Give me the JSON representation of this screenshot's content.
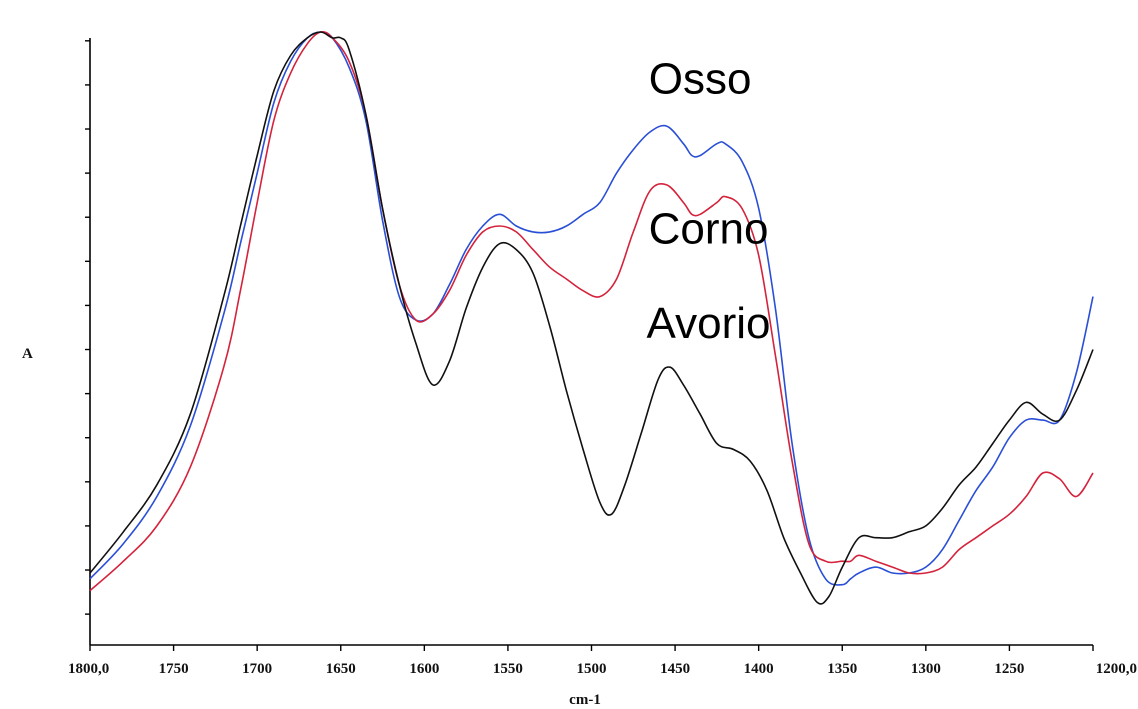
{
  "chart_data": {
    "type": "line",
    "xlabel": "cm-1",
    "ylabel": "A",
    "xlim": [
      1800,
      1200
    ],
    "x_reversed": true,
    "ylim": [
      0,
      1
    ],
    "x_tick_labels": [
      {
        "x": 1800,
        "label": "1800,0"
      },
      {
        "x": 1750,
        "label": "1750"
      },
      {
        "x": 1700,
        "label": "1700"
      },
      {
        "x": 1650,
        "label": "1650"
      },
      {
        "x": 1600,
        "label": "1600"
      },
      {
        "x": 1550,
        "label": "1550"
      },
      {
        "x": 1500,
        "label": "1500"
      },
      {
        "x": 1450,
        "label": "1450"
      },
      {
        "x": 1400,
        "label": "1400"
      },
      {
        "x": 1350,
        "label": "1350"
      },
      {
        "x": 1300,
        "label": "1300"
      },
      {
        "x": 1250,
        "label": "1250"
      },
      {
        "x": 1200,
        "label": "1200,0"
      }
    ],
    "y_tick_values": [
      0.01,
      0.085,
      0.16,
      0.235,
      0.31,
      0.385,
      0.46,
      0.535,
      0.61,
      0.685,
      0.76,
      0.835,
      0.91,
      0.985
    ],
    "annotations": [
      {
        "text": "Osso",
        "series": "Osso",
        "x": 1435,
        "y": 0.895
      },
      {
        "text": "Corno",
        "series": "Corno",
        "x": 1430,
        "y": 0.64
      },
      {
        "text": "Avorio",
        "series": "Avorio",
        "x": 1430,
        "y": 0.48
      }
    ],
    "series": [
      {
        "name": "Osso",
        "color": "#2a4fd6",
        "x": [
          1800,
          1780,
          1760,
          1740,
          1720,
          1710,
          1700,
          1690,
          1680,
          1670,
          1662,
          1655,
          1645,
          1635,
          1625,
          1615,
          1605,
          1595,
          1585,
          1575,
          1565,
          1555,
          1545,
          1535,
          1525,
          1515,
          1505,
          1495,
          1485,
          1475,
          1465,
          1455,
          1445,
          1440,
          1435,
          1425,
          1420,
          1410,
          1400,
          1390,
          1380,
          1370,
          1360,
          1350,
          1345,
          1340,
          1330,
          1320,
          1310,
          1300,
          1290,
          1280,
          1270,
          1260,
          1250,
          1240,
          1230,
          1220,
          1210,
          1200
        ],
        "y": [
          0.07,
          0.13,
          0.21,
          0.33,
          0.52,
          0.64,
          0.76,
          0.88,
          0.95,
          0.99,
          1.0,
          0.99,
          0.94,
          0.85,
          0.68,
          0.55,
          0.51,
          0.52,
          0.57,
          0.63,
          0.67,
          0.69,
          0.67,
          0.66,
          0.66,
          0.67,
          0.69,
          0.71,
          0.76,
          0.8,
          0.83,
          0.84,
          0.81,
          0.79,
          0.79,
          0.81,
          0.81,
          0.78,
          0.7,
          0.53,
          0.3,
          0.14,
          0.07,
          0.06,
          0.07,
          0.08,
          0.09,
          0.08,
          0.08,
          0.09,
          0.12,
          0.17,
          0.22,
          0.26,
          0.31,
          0.34,
          0.34,
          0.34,
          0.42,
          0.55
        ]
      },
      {
        "name": "Corno",
        "color": "#d4233c",
        "x": [
          1800,
          1780,
          1760,
          1740,
          1720,
          1710,
          1700,
          1690,
          1680,
          1670,
          1662,
          1655,
          1645,
          1635,
          1625,
          1615,
          1605,
          1595,
          1585,
          1575,
          1565,
          1555,
          1545,
          1535,
          1525,
          1515,
          1505,
          1495,
          1485,
          1475,
          1465,
          1455,
          1445,
          1440,
          1435,
          1425,
          1420,
          1410,
          1400,
          1390,
          1380,
          1370,
          1360,
          1350,
          1345,
          1340,
          1330,
          1320,
          1310,
          1300,
          1290,
          1280,
          1270,
          1260,
          1250,
          1240,
          1230,
          1220,
          1210,
          1200
        ],
        "y": [
          0.05,
          0.1,
          0.16,
          0.26,
          0.43,
          0.56,
          0.71,
          0.85,
          0.93,
          0.98,
          1.0,
          0.99,
          0.95,
          0.86,
          0.7,
          0.57,
          0.51,
          0.52,
          0.56,
          0.62,
          0.66,
          0.67,
          0.66,
          0.63,
          0.6,
          0.58,
          0.56,
          0.55,
          0.58,
          0.66,
          0.73,
          0.74,
          0.71,
          0.69,
          0.69,
          0.71,
          0.72,
          0.7,
          0.62,
          0.45,
          0.27,
          0.13,
          0.1,
          0.1,
          0.1,
          0.11,
          0.1,
          0.09,
          0.08,
          0.08,
          0.09,
          0.12,
          0.14,
          0.16,
          0.18,
          0.21,
          0.25,
          0.24,
          0.21,
          0.25
        ]
      },
      {
        "name": "Avorio",
        "color": "#111111",
        "x": [
          1800,
          1780,
          1760,
          1740,
          1720,
          1710,
          1700,
          1690,
          1680,
          1670,
          1662,
          1655,
          1650,
          1645,
          1635,
          1625,
          1615,
          1605,
          1595,
          1585,
          1575,
          1565,
          1555,
          1545,
          1535,
          1525,
          1515,
          1505,
          1495,
          1488,
          1480,
          1470,
          1460,
          1453,
          1445,
          1435,
          1425,
          1415,
          1405,
          1395,
          1385,
          1375,
          1365,
          1358,
          1350,
          1340,
          1330,
          1320,
          1310,
          1300,
          1290,
          1280,
          1270,
          1260,
          1250,
          1240,
          1230,
          1220,
          1210,
          1200
        ],
        "y": [
          0.08,
          0.15,
          0.23,
          0.35,
          0.55,
          0.67,
          0.79,
          0.9,
          0.96,
          0.99,
          1.0,
          0.99,
          0.99,
          0.97,
          0.86,
          0.7,
          0.57,
          0.47,
          0.4,
          0.44,
          0.53,
          0.6,
          0.64,
          0.63,
          0.59,
          0.5,
          0.39,
          0.29,
          0.2,
          0.18,
          0.23,
          0.32,
          0.41,
          0.43,
          0.4,
          0.35,
          0.3,
          0.29,
          0.27,
          0.22,
          0.14,
          0.08,
          0.03,
          0.04,
          0.09,
          0.14,
          0.14,
          0.14,
          0.15,
          0.16,
          0.19,
          0.23,
          0.26,
          0.3,
          0.34,
          0.37,
          0.35,
          0.34,
          0.39,
          0.46
        ]
      }
    ]
  }
}
